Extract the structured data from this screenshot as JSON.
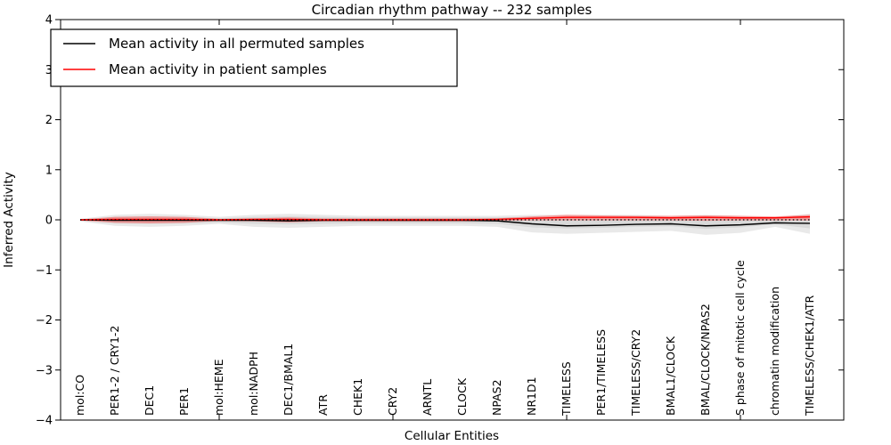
{
  "title": "Circadian rhythm pathway -- 232 samples",
  "axes": {
    "ylabel": "Inferred Activity",
    "xlabel": "Cellular Entities",
    "yticks": [
      "4",
      "3",
      "2",
      "1",
      "0",
      "−1",
      "−2",
      "−3",
      "−4"
    ]
  },
  "legend": {
    "entries": [
      {
        "label": "Mean activity in all permuted samples",
        "color": "#000000"
      },
      {
        "label": "Mean activity in patient samples",
        "color": "#ff0000"
      }
    ]
  },
  "chart_data": {
    "type": "line",
    "title": "Circadian rhythm pathway -- 232 samples",
    "xlabel": "Cellular Entities",
    "ylabel": "Inferred Activity",
    "ylim": [
      -4,
      4
    ],
    "grid": false,
    "legend_position": "upper left",
    "categories": [
      "mol:CO",
      "PER1-2 / CRY1-2",
      "DEC1",
      "PER1",
      "mol:HEME",
      "mol:NADPH",
      "DEC1/BMAL1",
      "ATR",
      "CHEK1",
      "CRY2",
      "ARNTL",
      "CLOCK",
      "NPAS2",
      "NR1D1",
      "TIMELESS",
      "PER1/TIMELESS",
      "TIMELESS/CRY2",
      "BMAL1/CLOCK",
      "BMAL/CLOCK/NPAS2",
      "S phase of mitotic cell cycle",
      "chromatin modification",
      "TIMELESS/CHEK1/ATR"
    ],
    "xtick_indices": [
      4,
      9,
      14,
      19
    ],
    "zero_line": {
      "y": 0,
      "style": "dotted",
      "color": "#000000"
    },
    "series": [
      {
        "name": "Mean activity in all permuted samples",
        "color": "#000000",
        "values": [
          0.0,
          -0.01,
          -0.01,
          -0.01,
          -0.01,
          -0.01,
          -0.02,
          -0.01,
          -0.01,
          -0.01,
          -0.01,
          -0.01,
          -0.02,
          -0.08,
          -0.12,
          -0.11,
          -0.09,
          -0.08,
          -0.12,
          -0.1,
          -0.06,
          -0.07
        ]
      },
      {
        "name": "Mean activity in patient samples",
        "color": "#ff0000",
        "values": [
          0.0,
          0.01,
          0.01,
          0.01,
          0.0,
          0.01,
          0.01,
          0.0,
          0.0,
          0.0,
          0.0,
          0.0,
          0.01,
          0.03,
          0.05,
          0.05,
          0.05,
          0.04,
          0.05,
          0.04,
          0.04,
          0.06
        ]
      }
    ],
    "bands": [
      {
        "name": "permuted-std-outer",
        "color": "#e9e9e9",
        "upper": [
          0.02,
          0.1,
          0.12,
          0.1,
          0.06,
          0.1,
          0.12,
          0.1,
          0.08,
          0.08,
          0.08,
          0.08,
          0.08,
          0.1,
          0.1,
          0.1,
          0.1,
          0.08,
          0.1,
          0.08,
          0.05,
          0.12
        ],
        "lower": [
          -0.03,
          -0.12,
          -0.14,
          -0.12,
          -0.08,
          -0.14,
          -0.16,
          -0.14,
          -0.12,
          -0.12,
          -0.12,
          -0.12,
          -0.14,
          -0.25,
          -0.28,
          -0.26,
          -0.24,
          -0.22,
          -0.3,
          -0.26,
          -0.14,
          -0.28
        ]
      },
      {
        "name": "permuted-std-inner",
        "color": "#d9d9d9",
        "upper": [
          0.01,
          0.06,
          0.07,
          0.06,
          0.03,
          0.06,
          0.07,
          0.06,
          0.05,
          0.05,
          0.05,
          0.05,
          0.05,
          0.06,
          0.06,
          0.06,
          0.06,
          0.05,
          0.06,
          0.05,
          0.03,
          0.07
        ],
        "lower": [
          -0.02,
          -0.07,
          -0.08,
          -0.07,
          -0.05,
          -0.08,
          -0.09,
          -0.08,
          -0.07,
          -0.07,
          -0.07,
          -0.07,
          -0.08,
          -0.15,
          -0.17,
          -0.16,
          -0.14,
          -0.13,
          -0.18,
          -0.15,
          -0.09,
          -0.17
        ]
      },
      {
        "name": "patient-std",
        "color": "rgba(255,70,70,0.45)",
        "upper": [
          0.01,
          0.06,
          0.07,
          0.06,
          0.02,
          0.03,
          0.05,
          0.03,
          0.03,
          0.03,
          0.03,
          0.03,
          0.03,
          0.07,
          0.1,
          0.09,
          0.08,
          0.08,
          0.09,
          0.08,
          0.07,
          0.1
        ],
        "lower": [
          -0.01,
          -0.06,
          -0.07,
          -0.06,
          -0.02,
          -0.03,
          -0.05,
          -0.03,
          -0.03,
          -0.03,
          -0.03,
          -0.03,
          -0.02,
          -0.01,
          -0.01,
          -0.01,
          -0.01,
          -0.01,
          -0.02,
          -0.01,
          -0.01,
          -0.01
        ]
      }
    ]
  }
}
